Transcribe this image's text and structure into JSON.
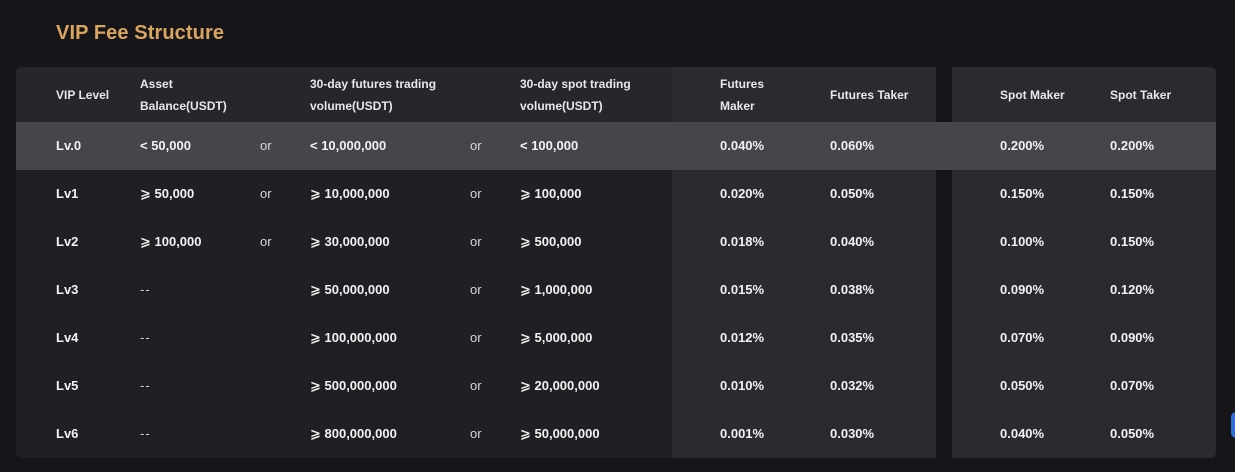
{
  "title": "VIP Fee Structure",
  "headers": {
    "vip_level": "VIP Level",
    "asset_balance": "Asset Balance(USDT)",
    "futures_volume": "30-day futures trading volume(USDT)",
    "spot_volume": "30-day spot trading volume(USDT)",
    "futures_maker": "Futures Maker",
    "futures_taker": "Futures Taker",
    "spot_maker": "Spot Maker",
    "spot_taker": "Spot Taker"
  },
  "rows": [
    {
      "level": "Lv.0",
      "asset": "< 50,000",
      "or1": "or",
      "futures_vol": "< 10,000,000",
      "or2": "or",
      "spot_vol": "< 100,000",
      "futures_maker": "0.040%",
      "futures_taker": "0.060%",
      "spot_maker": "0.200%",
      "spot_taker": "0.200%"
    },
    {
      "level": "Lv1",
      "asset": "⩾ 50,000",
      "or1": "or",
      "futures_vol": "⩾ 10,000,000",
      "or2": "or",
      "spot_vol": "⩾ 100,000",
      "futures_maker": "0.020%",
      "futures_taker": "0.050%",
      "spot_maker": "0.150%",
      "spot_taker": "0.150%"
    },
    {
      "level": "Lv2",
      "asset": "⩾ 100,000",
      "or1": "or",
      "futures_vol": "⩾ 30,000,000",
      "or2": "or",
      "spot_vol": "⩾ 500,000",
      "futures_maker": "0.018%",
      "futures_taker": "0.040%",
      "spot_maker": "0.100%",
      "spot_taker": "0.150%"
    },
    {
      "level": "Lv3",
      "asset": "--",
      "or1": "",
      "futures_vol": "⩾ 50,000,000",
      "or2": "or",
      "spot_vol": "⩾ 1,000,000",
      "futures_maker": "0.015%",
      "futures_taker": "0.038%",
      "spot_maker": "0.090%",
      "spot_taker": "0.120%"
    },
    {
      "level": "Lv4",
      "asset": "--",
      "or1": "",
      "futures_vol": "⩾ 100,000,000",
      "or2": "or",
      "spot_vol": "⩾ 5,000,000",
      "futures_maker": "0.012%",
      "futures_taker": "0.035%",
      "spot_maker": "0.070%",
      "spot_taker": "0.090%"
    },
    {
      "level": "Lv5",
      "asset": "--",
      "or1": "",
      "futures_vol": "⩾ 500,000,000",
      "or2": "or",
      "spot_vol": "⩾ 20,000,000",
      "futures_maker": "0.010%",
      "futures_taker": "0.032%",
      "spot_maker": "0.050%",
      "spot_taker": "0.070%"
    },
    {
      "level": "Lv6",
      "asset": "--",
      "or1": "",
      "futures_vol": "⩾ 800,000,000",
      "or2": "or",
      "spot_vol": "⩾ 50,000,000",
      "futures_maker": "0.001%",
      "futures_taker": "0.030%",
      "spot_maker": "0.040%",
      "spot_taker": "0.050%"
    }
  ],
  "colors": {
    "title": "#d9a55f",
    "highlight_row": "#45464c",
    "panel": "#202024",
    "background": "#16161a"
  }
}
